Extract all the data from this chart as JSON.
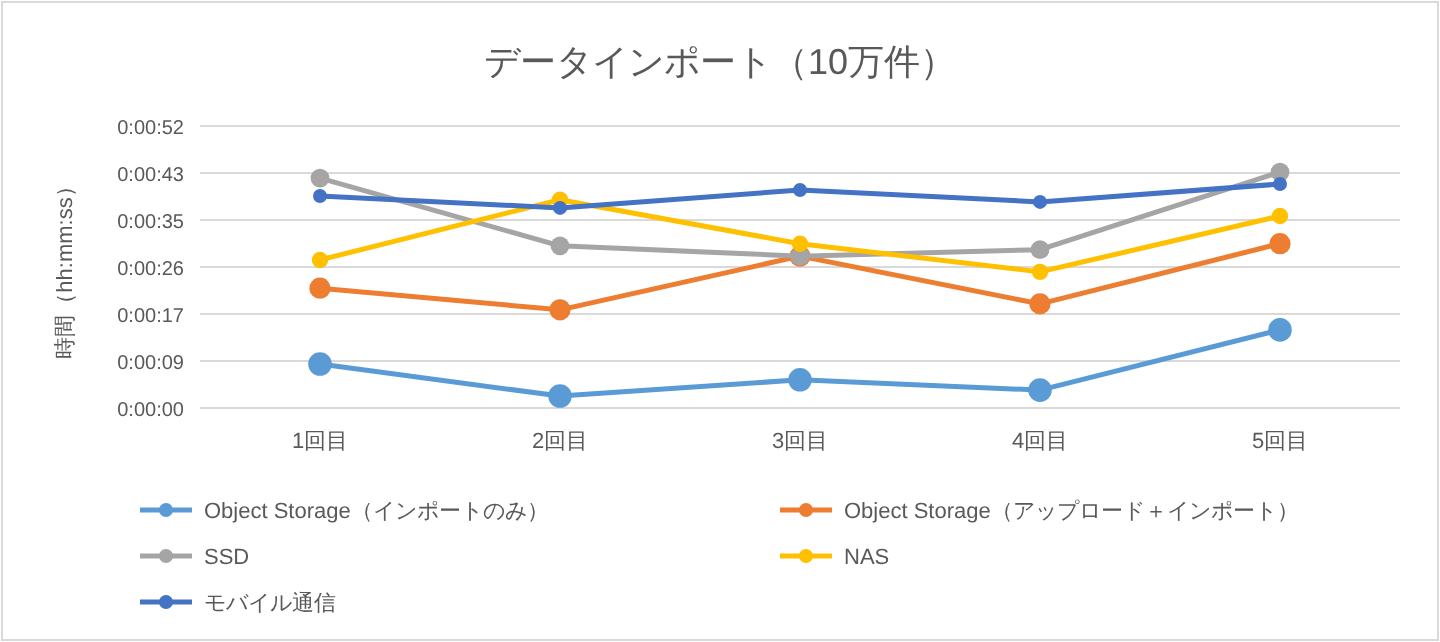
{
  "chart_data": {
    "type": "line",
    "title": "データインポート（10万件）",
    "ylabel": "時間（hh:mm:ss）",
    "categories": [
      "1回目",
      "2回目",
      "3回目",
      "4回目",
      "5回目"
    ],
    "series": [
      {
        "name": "Object Storage（インポートのみ）",
        "color": "#5b9bd5",
        "values": [
          8.1,
          2.2,
          5.2,
          3.3,
          14.4
        ]
      },
      {
        "name": "Object Storage（アップロード＋インポート）",
        "color": "#ed7d31",
        "values": [
          22.1,
          18.1,
          28.0,
          19.2,
          30.3
        ]
      },
      {
        "name": "SSD",
        "color": "#a5a5a5",
        "values": [
          42.4,
          29.9,
          28.0,
          29.2,
          43.5
        ]
      },
      {
        "name": "NAS",
        "color": "#ffc000",
        "values": [
          27.3,
          38.4,
          30.3,
          25.1,
          35.4
        ]
      },
      {
        "name": "モバイル通信",
        "color": "#4472c4",
        "values": [
          39.1,
          36.9,
          40.2,
          38.0,
          41.3
        ]
      }
    ],
    "ylim": [
      0,
      52
    ],
    "yticks": [
      {
        "value": 0,
        "label": "0:00:00"
      },
      {
        "value": 8.667,
        "label": "0:00:09"
      },
      {
        "value": 17.333,
        "label": "0:00:17"
      },
      {
        "value": 26,
        "label": "0:00:26"
      },
      {
        "value": 34.667,
        "label": "0:00:35"
      },
      {
        "value": 43.333,
        "label": "0:00:43"
      },
      {
        "value": 52,
        "label": "0:00:52"
      }
    ],
    "grid": "y",
    "legend": "bottom",
    "marker": "circle",
    "line_style": "solid"
  }
}
